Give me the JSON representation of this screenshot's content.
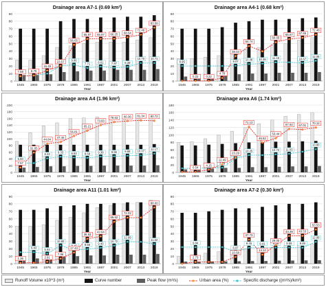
{
  "chart_data": [
    {
      "type": "bar",
      "title": "Drainage area A7-1 (0.69 km²)",
      "xlabel": "Year",
      "ylim": [
        0,
        90
      ],
      "yticks": [
        0,
        10,
        20,
        30,
        40,
        50,
        60,
        70,
        80,
        90
      ],
      "categories": [
        "1945",
        "1965",
        "1975",
        "1979",
        "1985",
        "1991",
        "1997",
        "2001",
        "2007",
        "2013",
        "2019"
      ],
      "series": [
        {
          "name": "Runoff Volume x10^3 (m³)",
          "values": [
            28,
            28,
            34,
            45,
            47,
            50,
            52,
            52,
            52,
            55,
            58
          ]
        },
        {
          "name": "Curve number",
          "values": [
            70,
            70,
            70,
            80,
            83,
            83,
            85,
            85,
            86,
            86,
            88
          ]
        },
        {
          "name": "Peak flow (m³/s)",
          "values": [
            8,
            8,
            9,
            12,
            13,
            14,
            14,
            15,
            15,
            15,
            16
          ]
        },
        {
          "name": "Urban area (%)",
          "values": [
            7.58,
            8.76,
            16.49,
            23.57,
            56.65,
            65.97,
            65.97,
            66.25,
            68.54,
            72.46,
            83.58
          ]
        },
        {
          "name": "Specific discharge ((m³/s)/km²)",
          "values": [
            2.8,
            3.4,
            4.4,
            9.08,
            9.66,
            7.71,
            8.61,
            7.87,
            8.39,
            10.7,
            10.71
          ]
        }
      ],
      "value_labels": {
        "urban": [
          "7.58",
          "8.76",
          "16.49",
          "23.57",
          "56.65",
          "65.97",
          "65.97",
          "66.25",
          "68.54",
          "72.46",
          "83.58"
        ],
        "specific": [
          "",
          "",
          "",
          "9.08",
          "9.66",
          "7.71",
          "8.61",
          "7.87",
          "8.39",
          "10.70",
          "10.71"
        ]
      }
    },
    {
      "type": "bar",
      "title": "Drainage area A4-1 (0.68 km²)",
      "xlabel": "Year",
      "ylim": [
        0,
        90
      ],
      "yticks": [
        0,
        10,
        20,
        30,
        40,
        50,
        60,
        70,
        80,
        90
      ],
      "categories": [
        "1945",
        "1965",
        "1975",
        "1979",
        "1985",
        "1991",
        "1997",
        "2001",
        "2007",
        "2013",
        "2019"
      ],
      "series": [
        {
          "name": "Runoff Volume x10^3 (m³)",
          "values": [
            30,
            30,
            32,
            34,
            38,
            42,
            45,
            48,
            50,
            55,
            58
          ]
        },
        {
          "name": "Curve number",
          "values": [
            70,
            70,
            70,
            72,
            78,
            80,
            82,
            82,
            83,
            84,
            85
          ]
        },
        {
          "name": "Peak flow (m³/s)",
          "values": [
            6,
            6,
            7,
            8,
            9,
            10,
            10,
            11,
            11,
            11,
            12
          ]
        },
        {
          "name": "Urban area (%)",
          "values": [
            0.22,
            0.22,
            0.22,
            4.79,
            39.04,
            54.74,
            46.5,
            60.65,
            65.67,
            67.65,
            72.48
          ]
        },
        {
          "name": "Specific discharge ((m³/s)/km²)",
          "values": [
            8.95,
            8.95,
            8.95,
            8.95,
            9.07,
            10.08,
            10.36,
            11.15,
            11.15,
            10.67,
            12.06
          ]
        }
      ],
      "value_labels": {
        "urban": [
          "",
          "0.22",
          "0.22",
          "4.79",
          "39.04",
          "54.74",
          "",
          "60.65",
          "65.67",
          "67.65",
          "72.48"
        ],
        "specific": [
          "8.95",
          "",
          "",
          "",
          "9.07",
          "10.08",
          "10.36",
          "11.15",
          "",
          "10.67",
          "12.06"
        ]
      }
    },
    {
      "type": "bar",
      "title": "Drainage area A4 (1.96 km²)",
      "xlabel": "Year",
      "ylim": [
        0,
        200
      ],
      "yticks": [
        0,
        20,
        40,
        60,
        80,
        100,
        120,
        140,
        160,
        180,
        200
      ],
      "categories": [
        "1945",
        "1965",
        "1975",
        "1979",
        "1985",
        "1991",
        "1997",
        "2001",
        "2007",
        "2013",
        "2019"
      ],
      "series": [
        {
          "name": "Runoff Volume x10^3 (m³)",
          "values": [
            92,
            118,
            138,
            147,
            160,
            162,
            165,
            168,
            170,
            172,
            172
          ]
        },
        {
          "name": "Curve number",
          "values": [
            82,
            82,
            82,
            82,
            82,
            82,
            82,
            82,
            82,
            82,
            84
          ]
        },
        {
          "name": "Peak flow (m³/s)",
          "values": [
            14,
            16,
            18,
            18,
            19,
            19,
            20,
            20,
            20,
            20,
            21
          ]
        },
        {
          "name": "Urban area (%)",
          "values": [
            7.57,
            31.05,
            44.84,
            47.46,
            56.81,
            65.21,
            73.93,
            78.63,
            80.36,
            81.34,
            80.72
          ]
        },
        {
          "name": "Specific discharge ((m³/s)/km²)",
          "values": [
            5.5,
            5.5,
            8.33,
            9.33,
            8.83,
            8.59,
            9.38,
            9.55,
            9.88,
            10.07,
            11.17
          ]
        }
      ],
      "value_labels": {
        "urban": [
          "7.57",
          "31.05",
          "44.84",
          "47.46",
          "56.81",
          "65.21",
          "73.93",
          "78.63",
          "80.36",
          "81.34",
          "80.72"
        ],
        "specific": [
          "5.50",
          "",
          "8.33",
          "9.33",
          "8.83",
          "8.59",
          "9.38",
          "9.55",
          "9.88",
          "10.07",
          "11.17"
        ]
      }
    },
    {
      "type": "bar",
      "title": "Drainage area A6 (1.74 km²)",
      "xlabel": "Year",
      "ylim": [
        0,
        180
      ],
      "yticks": [
        0,
        20,
        40,
        60,
        80,
        100,
        120,
        140,
        160,
        180
      ],
      "categories": [
        "1945",
        "1965",
        "1975",
        "1979",
        "1985",
        "1991",
        "1997",
        "2001",
        "2007",
        "2013",
        "2019"
      ],
      "series": [
        {
          "name": "Runoff Volume x10^3 (m³)",
          "values": [
            80,
            82,
            90,
            100,
            110,
            120,
            130,
            140,
            150,
            155,
            160
          ]
        },
        {
          "name": "Curve number",
          "values": [
            72,
            72,
            74,
            76,
            78,
            80,
            80,
            82,
            82,
            83,
            84
          ]
        },
        {
          "name": "Peak flow (m³/s)",
          "values": [
            8,
            8,
            10,
            12,
            12,
            14,
            14,
            15,
            16,
            16,
            17
          ]
        },
        {
          "name": "Urban area (%)",
          "values": [
            0.54,
            0.54,
            4.15,
            12.49,
            23.29,
            71.13,
            46.52,
            53.44,
            67.92,
            67.01,
            70.12
          ]
        },
        {
          "name": "Specific discharge ((m³/s)/km²)",
          "values": [
            2.4,
            2.4,
            2.6,
            2.79,
            8.38,
            10.25,
            10.25,
            10.72,
            11.03,
            12.3,
            13.8
          ]
        }
      ],
      "value_labels": {
        "urban": [
          "",
          "0.54",
          "4.15",
          "12.49",
          "23.29",
          "71.13",
          "46.52",
          "53.44",
          "67.92",
          "67.01",
          "70.12"
        ],
        "specific": [
          "",
          "",
          "",
          "2.79",
          "8.38",
          "10.25",
          "",
          "10.72",
          "11.03",
          "",
          "13.80"
        ]
      }
    },
    {
      "type": "bar",
      "title": "Drainage area A11 (1.01 km²)",
      "xlabel": "Year",
      "ylim": [
        0,
        90
      ],
      "yticks": [
        0,
        10,
        20,
        30,
        40,
        50,
        60,
        70,
        80,
        90
      ],
      "categories": [
        "1945",
        "1965",
        "1975",
        "1979",
        "1985",
        "1991",
        "1997",
        "2001",
        "2007",
        "2013",
        "2019"
      ],
      "series": [
        {
          "name": "Runoff Volume x10^3 (m³)",
          "values": [
            50,
            50,
            52,
            58,
            62,
            68,
            75,
            78,
            80,
            82,
            85
          ]
        },
        {
          "name": "Curve number",
          "values": [
            72,
            72,
            74,
            77,
            78,
            80,
            80,
            81,
            82,
            82,
            84
          ]
        },
        {
          "name": "Peak flow (m³/s)",
          "values": [
            7,
            7,
            8,
            9,
            10,
            11,
            11,
            12,
            12,
            12,
            13
          ]
        },
        {
          "name": "Urban area (%)",
          "values": [
            1.36,
            1.36,
            2.91,
            7.96,
            17.43,
            38.93,
            42.64,
            65.62,
            72.02,
            72.02,
            88.0
          ]
        },
        {
          "name": "Specific discharge ((m³/s)/km²)",
          "values": [
            6.83,
            6.83,
            5.93,
            10.8,
            8.16,
            8.66,
            9.4,
            10.72,
            12.99,
            12.99,
            11.62
          ]
        }
      ],
      "value_labels": {
        "urban": [
          "1.36",
          "",
          "2.91",
          "7.96",
          "17.43",
          "38.93",
          "42.64",
          "65.62",
          "72.02",
          "",
          "88.00"
        ],
        "specific": [
          "",
          "6.83",
          "5.93",
          "10.80",
          "8.16",
          "8.66",
          "9.40",
          "10.72",
          "12.99",
          "",
          "11.62"
        ]
      }
    },
    {
      "type": "bar",
      "title": "Drainage area A7-2 (0.30 km²)",
      "xlabel": "Year",
      "ylim": [
        0,
        90
      ],
      "yticks": [
        0,
        10,
        20,
        30,
        40,
        50,
        60,
        70,
        80,
        90
      ],
      "categories": [
        "1945",
        "1965",
        "1975",
        "1979",
        "1985",
        "1991",
        "1997",
        "2001",
        "2007",
        "2013",
        "2019"
      ],
      "series": [
        {
          "name": "Runoff Volume x10^3 (m³)",
          "values": [
            10,
            12,
            14,
            16,
            18,
            20,
            20,
            22,
            24,
            25,
            26
          ]
        },
        {
          "name": "Curve number",
          "values": [
            68,
            68,
            70,
            72,
            74,
            74,
            76,
            78,
            80,
            80,
            82
          ]
        },
        {
          "name": "Peak flow (m³/s)",
          "values": [
            2.8,
            2.8,
            3.0,
            3.0,
            3.2,
            3.5,
            3.6,
            4.0,
            4.2,
            4.4,
            4.6
          ]
        },
        {
          "name": "Urban area (%)",
          "values": [
            0.0,
            2.73,
            2.73,
            2.73,
            10.58,
            37.73,
            14.14,
            29.05,
            43.39,
            43.53,
            53.53
          ]
        },
        {
          "name": "Specific discharge ((m³/s)/km²)",
          "values": [
            9.84,
            9.84,
            9.84,
            9.84,
            6.97,
            9.45,
            9.41,
            9.58,
            9.58,
            9.49,
            12.99
          ]
        }
      ],
      "value_labels": {
        "urban": [
          "",
          "2.73",
          "",
          "",
          "10.58",
          "37.73",
          "14.14",
          "29.05",
          "43.39",
          "43.53",
          "53.53"
        ],
        "specific": [
          "",
          "9.84",
          "",
          "",
          "6.97",
          "9.45",
          "9.41",
          "9.58",
          "9.58",
          "9.49",
          "12.99"
        ]
      }
    }
  ],
  "legend": {
    "runoff": "Runoff Volume x10^3 (m³)",
    "curve": "Curve number",
    "peak": "Peak flow (m³/s)",
    "urban": "Urban area (%)",
    "specific": "Specific discharge ((m³/s)/km²)"
  },
  "colors": {
    "runoff_fill": "#e6e6e6",
    "curve_fill": "#141414",
    "peak_fill": "#5f5f5f",
    "urban_line": "#e8231e",
    "specific_line": "#41c4cf",
    "gridline": "#d8d8d8"
  }
}
